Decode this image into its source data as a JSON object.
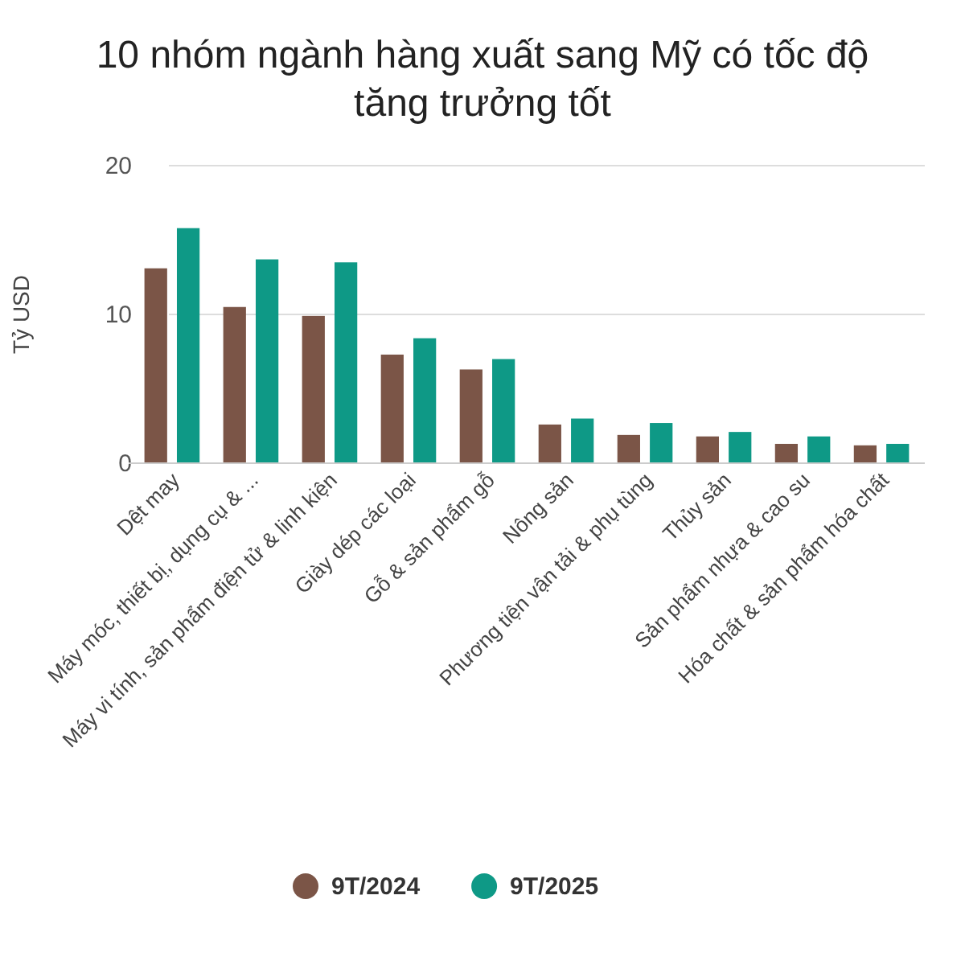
{
  "chart_data": {
    "type": "bar",
    "title": "10 nhóm ngành hàng xuất sang Mỹ có tốc độ tăng trưởng tốt",
    "ylabel": "Tỷ USD",
    "categories": [
      "Dệt may",
      "Máy móc, thiết bị, dụng cụ & ...",
      "Máy vi tính, sản phẩm điện tử & linh kiện",
      "Giày dép các loại",
      "Gỗ & sản phẩm gỗ",
      "Nông sản",
      "Phương tiện vận tải & phụ tùng",
      "Thủy sản",
      "Sản phẩm nhựa & cao su",
      "Hóa chất & sản phẩm hóa chất"
    ],
    "series": [
      {
        "name": "9T/2024",
        "color": "#7b5547",
        "values": [
          13.1,
          10.5,
          9.9,
          7.3,
          6.3,
          2.6,
          1.9,
          1.8,
          1.3,
          1.2
        ]
      },
      {
        "name": "9T/2025",
        "color": "#0e9986",
        "values": [
          15.8,
          13.7,
          13.5,
          8.4,
          7.0,
          3.0,
          2.7,
          2.1,
          1.8,
          1.3
        ]
      }
    ],
    "ylim": [
      0,
      20
    ],
    "yticks": [
      0,
      10,
      20
    ],
    "grid": "y",
    "legend": "bottom"
  }
}
